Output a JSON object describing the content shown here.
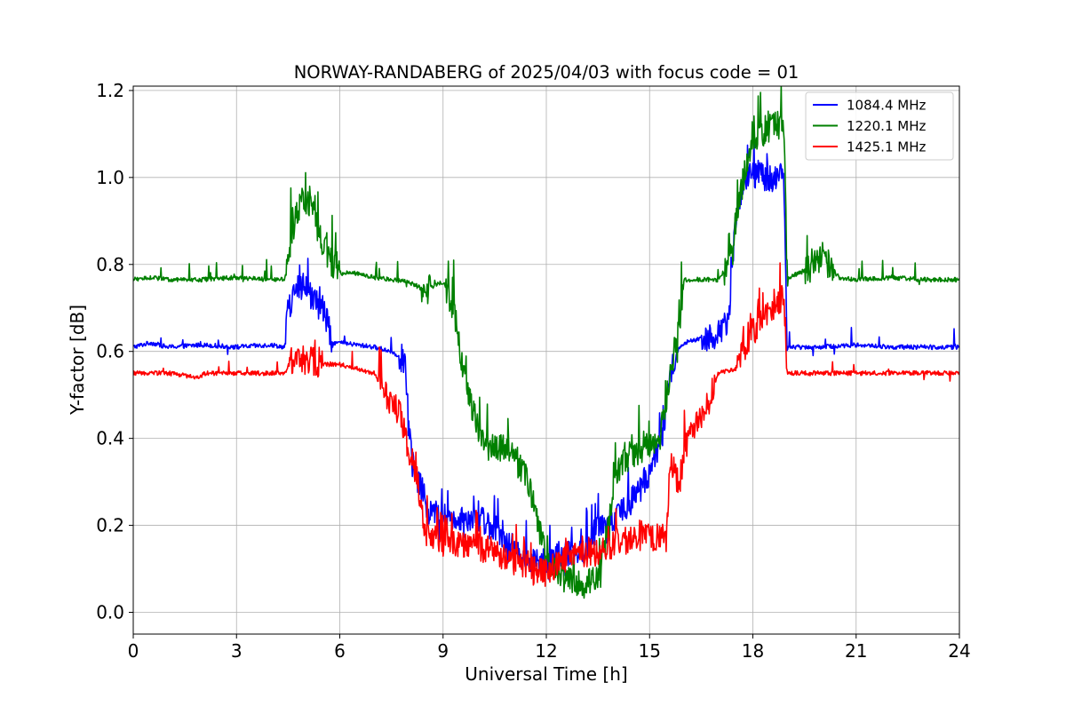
{
  "chart_data": {
    "type": "line",
    "title": "NORWAY-RANDABERG of 2025/04/03 with focus code = 01",
    "xlabel": "Universal Time [h]",
    "ylabel": "Y-factor [dB]",
    "xlim": [
      0,
      24
    ],
    "ylim": [
      -0.05,
      1.21
    ],
    "xticks": [
      0,
      3,
      6,
      9,
      12,
      15,
      18,
      21,
      24
    ],
    "yticks": [
      0.0,
      0.2,
      0.4,
      0.6,
      0.8,
      1.0,
      1.2
    ],
    "xtick_labels": [
      "0",
      "3",
      "6",
      "9",
      "12",
      "15",
      "18",
      "21",
      "24"
    ],
    "ytick_labels": [
      "0.0",
      "0.2",
      "0.4",
      "0.6",
      "0.8",
      "1.0",
      "1.2"
    ],
    "grid": true,
    "legend_position": "top-right",
    "series": [
      {
        "name": "1084.4 MHz",
        "color": "#0000ff",
        "noise": [
          0.03,
          0.06
        ],
        "x": [
          0,
          0.5,
          1.0,
          2.0,
          3.0,
          4.0,
          4.4,
          4.5,
          4.8,
          5.0,
          5.2,
          5.5,
          5.8,
          6.0,
          6.5,
          7.0,
          7.5,
          7.9,
          8.0,
          8.2,
          8.4,
          8.6,
          9.0,
          9.5,
          10.0,
          10.5,
          11.0,
          11.5,
          12.0,
          12.5,
          13.0,
          13.5,
          14.0,
          14.3,
          14.6,
          15.0,
          15.4,
          15.6,
          15.8,
          16.0,
          16.5,
          17.0,
          17.3,
          17.5,
          17.7,
          18.0,
          18.3,
          18.6,
          18.9,
          19.0,
          19.5,
          20.0,
          21.0,
          22.0,
          23.0,
          24.0
        ],
        "y": [
          0.61,
          0.62,
          0.61,
          0.615,
          0.61,
          0.615,
          0.61,
          0.7,
          0.75,
          0.73,
          0.72,
          0.7,
          0.62,
          0.62,
          0.615,
          0.61,
          0.6,
          0.58,
          0.42,
          0.3,
          0.28,
          0.23,
          0.22,
          0.22,
          0.22,
          0.2,
          0.15,
          0.12,
          0.1,
          0.14,
          0.13,
          0.2,
          0.22,
          0.24,
          0.27,
          0.32,
          0.42,
          0.55,
          0.6,
          0.62,
          0.63,
          0.64,
          0.68,
          0.9,
          0.98,
          1.01,
          1.0,
          1.0,
          1.0,
          0.61,
          0.61,
          0.61,
          0.615,
          0.61,
          0.61,
          0.61
        ]
      },
      {
        "name": "1220.1 MHz",
        "color": "#008000",
        "noise": [
          0.03,
          0.07
        ],
        "x": [
          0,
          0.5,
          1.0,
          2.0,
          3.0,
          4.0,
          4.4,
          4.6,
          4.9,
          5.2,
          5.5,
          5.8,
          6.0,
          6.5,
          7.0,
          7.5,
          8.0,
          8.5,
          9.0,
          9.3,
          9.6,
          9.9,
          10.2,
          10.5,
          11.0,
          11.5,
          12.0,
          12.5,
          13.0,
          13.5,
          13.8,
          14.0,
          14.4,
          14.8,
          15.0,
          15.3,
          15.6,
          15.9,
          16.0,
          16.5,
          17.0,
          17.3,
          17.6,
          17.8,
          18.0,
          18.3,
          18.6,
          18.9,
          19.0,
          19.3,
          19.7,
          20.0,
          20.2,
          20.5,
          21.0,
          22.0,
          23.0,
          24.0
        ],
        "y": [
          0.765,
          0.77,
          0.765,
          0.765,
          0.77,
          0.765,
          0.765,
          0.87,
          0.95,
          0.93,
          0.85,
          0.8,
          0.78,
          0.78,
          0.77,
          0.765,
          0.76,
          0.74,
          0.76,
          0.7,
          0.55,
          0.45,
          0.38,
          0.38,
          0.37,
          0.3,
          0.12,
          0.08,
          0.06,
          0.08,
          0.2,
          0.32,
          0.36,
          0.375,
          0.375,
          0.4,
          0.55,
          0.68,
          0.765,
          0.765,
          0.765,
          0.8,
          0.95,
          1.02,
          1.08,
          1.1,
          1.12,
          1.12,
          0.765,
          0.78,
          0.79,
          0.82,
          0.8,
          0.77,
          0.765,
          0.77,
          0.765,
          0.765
        ]
      },
      {
        "name": "1425.1 MHz",
        "color": "#ff0000",
        "noise": [
          0.03,
          0.06
        ],
        "x": [
          0,
          0.5,
          1.0,
          1.9,
          2.1,
          3.0,
          4.0,
          4.4,
          4.6,
          5.0,
          5.5,
          6.0,
          6.5,
          7.0,
          7.3,
          7.5,
          7.8,
          8.0,
          8.2,
          8.5,
          9.0,
          9.5,
          10.0,
          10.5,
          11.0,
          11.5,
          12.0,
          12.5,
          13.0,
          13.5,
          14.0,
          14.5,
          15.0,
          15.5,
          15.6,
          15.9,
          16.0,
          16.5,
          17.0,
          17.5,
          17.7,
          18.0,
          18.3,
          18.6,
          18.9,
          19.0,
          19.5,
          20.0,
          21.0,
          22.0,
          23.0,
          24.0
        ],
        "y": [
          0.55,
          0.55,
          0.55,
          0.54,
          0.55,
          0.55,
          0.55,
          0.55,
          0.58,
          0.58,
          0.57,
          0.57,
          0.56,
          0.55,
          0.5,
          0.48,
          0.45,
          0.36,
          0.33,
          0.17,
          0.17,
          0.16,
          0.15,
          0.14,
          0.12,
          0.1,
          0.09,
          0.12,
          0.13,
          0.14,
          0.16,
          0.17,
          0.17,
          0.17,
          0.35,
          0.28,
          0.38,
          0.45,
          0.55,
          0.56,
          0.6,
          0.65,
          0.68,
          0.7,
          0.72,
          0.55,
          0.55,
          0.55,
          0.55,
          0.55,
          0.55,
          0.55
        ]
      }
    ]
  }
}
